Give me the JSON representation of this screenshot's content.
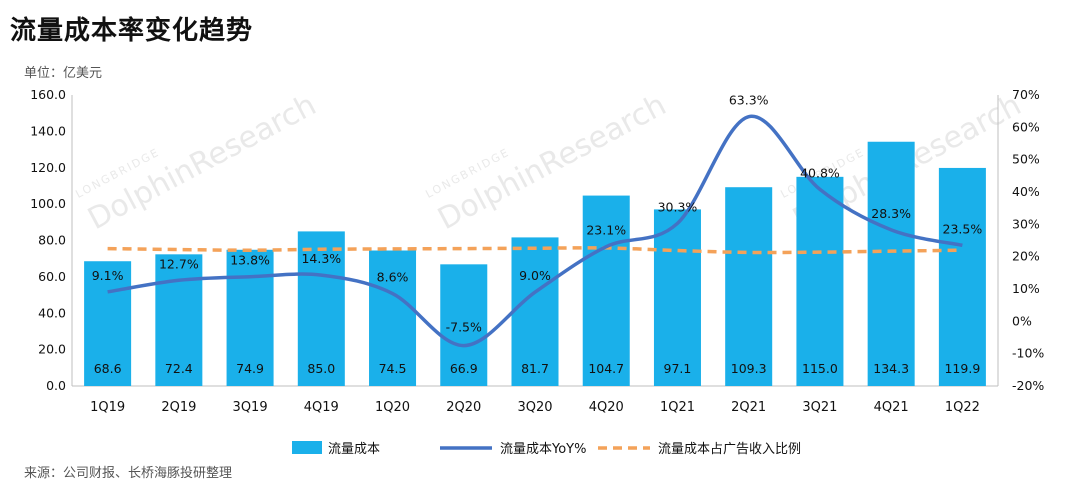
{
  "header": {
    "title": "流量成本率变化趋势",
    "unit": "单位：亿美元"
  },
  "footer": {
    "source": "来源：公司财报、长桥海豚投研整理"
  },
  "watermark": {
    "brand_small": "LONGBRIDGE",
    "brand_large": "DolphinResearch"
  },
  "chart_data": {
    "type": "bar",
    "categories": [
      "1Q19",
      "2Q19",
      "3Q19",
      "4Q19",
      "1Q20",
      "2Q20",
      "3Q20",
      "4Q20",
      "1Q21",
      "2Q21",
      "3Q21",
      "4Q21",
      "1Q22"
    ],
    "series": [
      {
        "name": "流量成本",
        "type": "bar",
        "axis": "left",
        "color": "#1ab0ea",
        "values": [
          68.6,
          72.4,
          74.9,
          85.0,
          74.5,
          66.9,
          81.7,
          104.7,
          97.1,
          109.3,
          115.0,
          134.3,
          119.9
        ],
        "labels": [
          "68.6",
          "72.4",
          "74.9",
          "85.0",
          "74.5",
          "66.9",
          "81.7",
          "104.7",
          "97.1",
          "109.3",
          "115.0",
          "134.3",
          "119.9"
        ]
      },
      {
        "name": "流量成本YoY%",
        "type": "line",
        "axis": "right",
        "color": "#4472c4",
        "values": [
          9.1,
          12.7,
          13.8,
          14.3,
          8.6,
          -7.5,
          9.0,
          23.1,
          30.3,
          63.3,
          40.8,
          28.3,
          23.5
        ],
        "labels": [
          "9.1%",
          "12.7%",
          "13.8%",
          "14.3%",
          "8.6%",
          "-7.5%",
          "9.0%",
          "23.1%",
          "30.3%",
          "63.3%",
          "40.8%",
          "28.3%",
          "23.5%"
        ]
      },
      {
        "name": "流量成本占广告收入比例",
        "type": "line-dashed",
        "axis": "right",
        "color": "#f4a259",
        "values": [
          22.5,
          22.2,
          22.0,
          22.3,
          22.4,
          22.5,
          22.6,
          22.7,
          21.9,
          21.3,
          21.4,
          21.7,
          22.0
        ]
      }
    ],
    "y_left": {
      "min": 0,
      "max": 160,
      "ticks": [
        "0.0",
        "20.0",
        "40.0",
        "60.0",
        "80.0",
        "100.0",
        "120.0",
        "140.0",
        "160.0"
      ]
    },
    "y_right": {
      "min": -20,
      "max": 70,
      "ticks": [
        "-20%",
        "-10%",
        "0%",
        "10%",
        "20%",
        "30%",
        "40%",
        "50%",
        "60%",
        "70%"
      ]
    },
    "legend_position": "bottom",
    "grid": false
  }
}
